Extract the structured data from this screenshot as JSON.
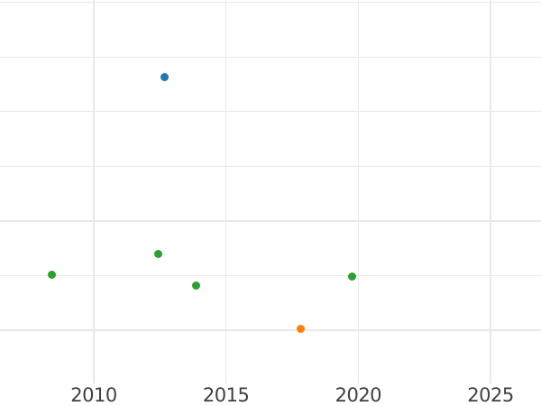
{
  "colors": {
    "background": "#ffffff",
    "gridline": "#e9e9e9",
    "tick_label": "#414141",
    "series_blue": "#1f77b4",
    "series_orange": "#ff7f0e",
    "series_green": "#2ca02c"
  },
  "chart_data": {
    "type": "scatter",
    "title": "",
    "xlabel": "",
    "ylabel": "",
    "grid": true,
    "legend": "none",
    "x_tick_labels": [
      "2010",
      "2015",
      "2020",
      "2025"
    ],
    "x_ticks": [
      2010,
      2015,
      2020,
      2025
    ],
    "xlim": [
      2006.5,
      2026.9
    ],
    "ylim": [
      -0.97,
      6.04
    ],
    "y_axis_note": "y-axis tick labels are not visible in the image; y values are estimated in gridline units where the lowest visible horizontal gridline = 0 and each gridline step = 1",
    "y_gridline_values": [
      0,
      1,
      2,
      3,
      4,
      5,
      6
    ],
    "series": [
      {
        "name": "blue",
        "color": "#1f77b4",
        "points": [
          {
            "x": 2012.69,
            "y": 4.63
          }
        ]
      },
      {
        "name": "orange",
        "color": "#ff7f0e",
        "points": [
          {
            "x": 2017.81,
            "y": 0.03
          }
        ]
      },
      {
        "name": "green",
        "color": "#2ca02c",
        "points": [
          {
            "x": 2008.43,
            "y": 1.01
          },
          {
            "x": 2012.45,
            "y": 1.39
          },
          {
            "x": 2013.87,
            "y": 0.81
          },
          {
            "x": 2019.76,
            "y": 0.98
          }
        ]
      }
    ]
  }
}
